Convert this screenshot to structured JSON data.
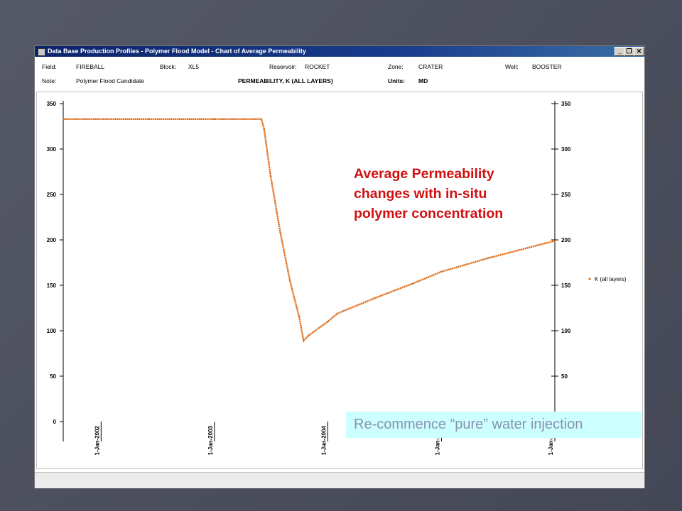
{
  "window": {
    "title": "Data Base Production Profiles - Polymer Flood Model - Chart of Average Permeability",
    "minimize_label": "_",
    "restore_label": "❐",
    "close_label": "✕"
  },
  "info": {
    "field_label": "Field:",
    "field_value": "FIREBALL",
    "block_label": "Block:",
    "block_value": "XL5",
    "reservoir_label": "Reservoir:",
    "reservoir_value": "ROCKET",
    "zone_label": "Zone:",
    "zone_value": "CRATER",
    "well_label": "Well:",
    "well_value": "BOOSTER",
    "note_label": "Note:",
    "note_value": "Polymer Flood Candidate",
    "chart_title": "PERMEABILITY, K (ALL LAYERS)",
    "units_label": "Units:",
    "units_value": "MD"
  },
  "annotation": {
    "line1": "Average Permeability",
    "line2": "changes with in-situ",
    "line3": "polymer concentration"
  },
  "callout": {
    "text": "Re-commence “pure” water injection"
  },
  "chart_data": {
    "type": "scatter",
    "title": "PERMEABILITY, K (ALL LAYERS)",
    "xlabel": "",
    "ylabel": "",
    "ylim": [
      0,
      350
    ],
    "xlim": [
      "2001-09-01",
      "2006-01-01"
    ],
    "yticks": [
      0,
      50,
      100,
      150,
      200,
      250,
      300,
      350
    ],
    "xtick_labels": [
      "1-Jan-2002",
      "1-Jan-2003",
      "1-Jan-2004",
      "1-Jan-2005",
      "1-Jan-2006"
    ],
    "grid": false,
    "legend": "right",
    "series": [
      {
        "name": "K (all layers)",
        "color": "#e0701f",
        "x": [
          "2001-09-01",
          "2002-06-01",
          "2003-01-01",
          "2003-06-01",
          "2003-06-10",
          "2003-07-01",
          "2003-08-01",
          "2003-09-01",
          "2003-10-01",
          "2003-10-15",
          "2003-11-01",
          "2004-01-01",
          "2004-02-01",
          "2004-06-01",
          "2004-10-01",
          "2005-01-01",
          "2005-06-01",
          "2006-01-01"
        ],
        "y": [
          333,
          333,
          333,
          333,
          322,
          270,
          208,
          155,
          115,
          89,
          95,
          110,
          119,
          136,
          152,
          165,
          180,
          199
        ]
      }
    ]
  }
}
